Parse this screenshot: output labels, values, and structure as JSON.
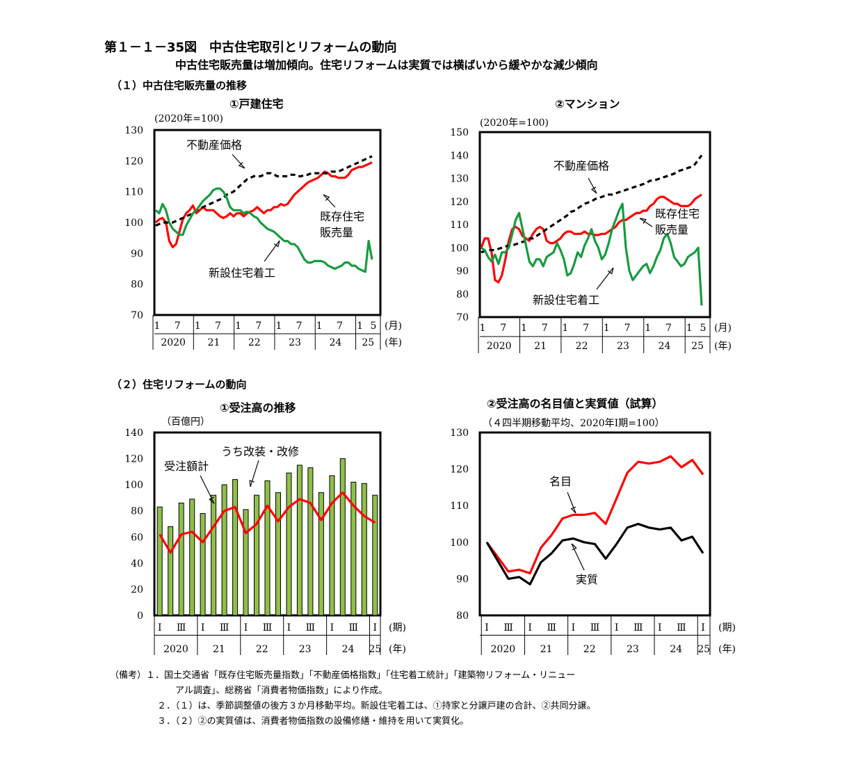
{
  "figure": {
    "title": "第１－１－35図　中古住宅取引とリフォームの動向",
    "subtitle": "中古住宅販売量は増加傾向。住宅リフォームは実質では横ばいから緩やかな減少傾向",
    "section1": "（１）中古住宅販売量の推移",
    "section2": "（２）住宅リフォームの動向"
  },
  "panels": [
    {
      "title": "①戸建住宅",
      "unit": "(2020年=100)"
    },
    {
      "title": "②マンション",
      "unit": "(2020年=100)"
    },
    {
      "title": "①受注高の推移",
      "unit": "（百億円）"
    },
    {
      "title": "②受注高の名目値と実質値（試算）",
      "unit": "（４四半期移動平均、2020年Ⅰ期=100）"
    }
  ],
  "notes": [
    "（備考）１．国土交通省「既存住宅販売量指数」「不動産価格指数」「住宅着工統計」「建築物リフォーム・リニュー",
    "アル調査」、総務省「消費者物価指数」により作成。",
    "２．（１）は、季節調整値の後方３か月移動平均。新設住宅着工は、①持家と分譲戸建の合計、②共同分譲。",
    "３．（２）②の実質値は、消費者物価指数の設備修繕・維持を用いて実質化。"
  ],
  "chart_data": [
    {
      "type": "line",
      "title": "①戸建住宅",
      "ylabel": "(2020年=100)",
      "ylim": [
        70,
        130
      ],
      "yticks": [
        70,
        80,
        90,
        100,
        110,
        120,
        130
      ],
      "x_unit_label": "(月)",
      "year_unit_label": "(年)",
      "month_ticks": [
        "1",
        "7",
        "1",
        "7",
        "1",
        "7",
        "1",
        "7",
        "1",
        "7",
        "1",
        "5"
      ],
      "years": [
        "2020",
        "21",
        "22",
        "23",
        "24",
        "25"
      ],
      "x_start": "2020-01",
      "x_end": "2025-05",
      "series": [
        {
          "name": "既存住宅販売量",
          "color": "#ff0000",
          "style": "solid",
          "values": [
            100,
            101,
            101.5,
            100,
            94,
            92,
            93,
            97,
            101,
            103,
            104,
            105.5,
            103,
            104,
            105,
            104,
            104,
            104,
            103,
            102,
            101.5,
            102,
            103,
            102,
            103,
            103,
            102,
            103,
            103.5,
            104,
            105,
            104,
            103,
            104,
            104,
            105,
            105,
            106,
            105.5,
            106,
            107.5,
            109,
            110,
            111,
            112,
            113,
            113.5,
            114,
            114.5,
            115.5,
            116.5,
            116,
            115,
            115,
            114.5,
            114.5,
            114.5,
            115.5,
            117,
            117.5,
            118,
            118,
            118.5,
            119,
            119.5
          ]
        },
        {
          "name": "不動産価格",
          "color": "#000000",
          "style": "dashed",
          "values": [
            99,
            99.5,
            100,
            100,
            100,
            100,
            100.5,
            101,
            101.5,
            102,
            102.5,
            103,
            104,
            104.5,
            105,
            105.5,
            106,
            106.5,
            107,
            107.5,
            108,
            109,
            109.5,
            110,
            111,
            112,
            113,
            114,
            114.5,
            115,
            115,
            115,
            115.5,
            116,
            116,
            115.5,
            115,
            115,
            115,
            115,
            115.5,
            115.5,
            115,
            115,
            115.5,
            115.5,
            116,
            116,
            116,
            116,
            116,
            116,
            116.5,
            116.5,
            116.5,
            117,
            117.5,
            118,
            118.5,
            119,
            119.5,
            120,
            120.5,
            121,
            121.5
          ]
        },
        {
          "name": "新設住宅着工",
          "color": "#169b3e",
          "style": "solid",
          "values": [
            104,
            103,
            106,
            104,
            100,
            98,
            97,
            96,
            96,
            99,
            101,
            103,
            104,
            105.5,
            107,
            108,
            109,
            110.5,
            111,
            111,
            110,
            108,
            105,
            104,
            104,
            104,
            103,
            103.5,
            103,
            102,
            101.5,
            100,
            99,
            98,
            97.5,
            97,
            96,
            95,
            94,
            94,
            93,
            93,
            92,
            90,
            88,
            87,
            87,
            87.5,
            87.5,
            87.5,
            87,
            86,
            85.5,
            85,
            85.5,
            86,
            87,
            87,
            86,
            86,
            85,
            84.5,
            84,
            94,
            88
          ]
        }
      ],
      "annotations": [
        "不動産価格",
        "既存住宅",
        "販売量",
        "新設住宅着工"
      ]
    },
    {
      "type": "line",
      "title": "②マンション",
      "ylabel": "(2020年=100)",
      "ylim": [
        70,
        150
      ],
      "yticks": [
        70,
        80,
        90,
        100,
        110,
        120,
        130,
        140,
        150
      ],
      "x_unit_label": "(月)",
      "year_unit_label": "(年)",
      "month_ticks": [
        "1",
        "7",
        "1",
        "7",
        "1",
        "7",
        "1",
        "7",
        "1",
        "7",
        "1",
        "5"
      ],
      "years": [
        "2020",
        "21",
        "22",
        "23",
        "24",
        "25"
      ],
      "x_start": "2020-01",
      "x_end": "2025-05",
      "series": [
        {
          "name": "既存住宅販売量",
          "color": "#ff0000",
          "style": "solid",
          "values": [
            100,
            104,
            104,
            98,
            86,
            85,
            88,
            95,
            103,
            108,
            109,
            108,
            105,
            104,
            103,
            106,
            108,
            109,
            108,
            103,
            102,
            102,
            103,
            104,
            106,
            107,
            107,
            106,
            106,
            106,
            107,
            106,
            106,
            105.5,
            105.5,
            106,
            106,
            107,
            108,
            109,
            111,
            112,
            112,
            113,
            114,
            115,
            115,
            116,
            116,
            118,
            119,
            121,
            122,
            122,
            121,
            120,
            119,
            119,
            118,
            118,
            118,
            119,
            121,
            122,
            123
          ]
        },
        {
          "name": "不動産価格",
          "color": "#000000",
          "style": "dashed",
          "values": [
            98,
            98.5,
            99,
            99,
            99,
            99.5,
            100,
            100.5,
            101,
            101,
            101.5,
            102,
            102.5,
            103,
            104,
            104,
            105,
            106,
            107,
            108,
            109,
            110,
            111,
            112,
            113,
            114,
            115.5,
            116,
            117,
            118,
            119,
            119.5,
            120,
            121,
            121.5,
            122,
            122.5,
            123,
            123,
            123.5,
            124,
            124.5,
            125,
            125.5,
            126,
            126.5,
            127,
            127.5,
            128,
            129,
            129,
            129.5,
            130,
            130.5,
            131,
            131.5,
            132,
            133,
            133.5,
            134,
            134.5,
            135,
            136,
            138,
            140
          ]
        },
        {
          "name": "新設住宅着工",
          "color": "#169b3e",
          "style": "solid",
          "values": [
            100,
            99,
            96,
            94,
            97,
            93,
            98,
            98,
            100,
            106,
            112,
            115,
            108,
            101,
            94,
            92,
            95,
            95,
            92,
            96,
            97,
            98,
            102,
            99,
            95,
            88,
            89,
            93,
            98,
            96,
            101,
            104,
            108,
            103,
            100,
            95,
            97,
            102,
            108,
            112,
            116,
            119,
            100,
            90,
            86,
            88,
            90,
            92,
            93,
            89,
            92,
            96,
            99,
            104,
            106,
            102,
            96,
            94,
            92,
            93,
            96,
            97,
            98,
            100,
            75
          ]
        }
      ],
      "annotations": [
        "不動産価格",
        "既存住宅",
        "販売量",
        "新設住宅着工"
      ]
    },
    {
      "type": "bar",
      "title": "①受注高の推移",
      "ylabel": "（百億円）",
      "ylim": [
        0,
        140
      ],
      "yticks": [
        0,
        20,
        40,
        60,
        80,
        100,
        120,
        140
      ],
      "x_unit_label": "(期)",
      "year_unit_label": "(年)",
      "quarter_ticks": [
        "Ⅰ",
        "Ⅲ",
        "Ⅰ",
        "Ⅲ",
        "Ⅰ",
        "Ⅲ",
        "Ⅰ",
        "Ⅲ",
        "Ⅰ",
        "Ⅲ",
        "Ⅰ"
      ],
      "years": [
        "2020",
        "21",
        "22",
        "23",
        "24",
        "25"
      ],
      "categories": [
        "2020Q1",
        "2020Q2",
        "2020Q3",
        "2020Q4",
        "2021Q1",
        "2021Q2",
        "2021Q3",
        "2021Q4",
        "2022Q1",
        "2022Q2",
        "2022Q3",
        "2022Q4",
        "2023Q1",
        "2023Q2",
        "2023Q3",
        "2023Q4",
        "2024Q1",
        "2024Q2",
        "2024Q3",
        "2024Q4",
        "2025Q1"
      ],
      "series": [
        {
          "name": "受注額計",
          "color": "#8fbf4a",
          "type": "bar",
          "values": [
            83,
            68,
            86,
            89,
            78,
            92,
            100,
            104,
            81,
            92,
            103,
            94,
            109,
            115,
            113,
            94,
            107,
            120,
            102,
            101,
            92
          ]
        },
        {
          "name": "うち改装・改修",
          "color": "#ff0000",
          "type": "line",
          "values": [
            62,
            48,
            62,
            64,
            56,
            68,
            80,
            83,
            63,
            70,
            84,
            72,
            83,
            89,
            86,
            73,
            86,
            94,
            84,
            76,
            71
          ]
        }
      ],
      "annotations": [
        "うち改装・改修",
        "受注額計"
      ]
    },
    {
      "type": "line",
      "title": "②受注高の名目値と実質値（試算）",
      "ylabel": "（４四半期移動平均、2020年Ⅰ期=100）",
      "ylim": [
        80,
        130
      ],
      "yticks": [
        80,
        90,
        100,
        110,
        120,
        130
      ],
      "x_unit_label": "(期)",
      "year_unit_label": "(年)",
      "quarter_ticks": [
        "Ⅰ",
        "Ⅲ",
        "Ⅰ",
        "Ⅲ",
        "Ⅰ",
        "Ⅲ",
        "Ⅰ",
        "Ⅲ",
        "Ⅰ",
        "Ⅲ",
        "Ⅰ"
      ],
      "years": [
        "2020",
        "21",
        "22",
        "23",
        "24",
        "25"
      ],
      "categories": [
        "2020Q1",
        "2020Q2",
        "2020Q3",
        "2020Q4",
        "2021Q1",
        "2021Q2",
        "2021Q3",
        "2021Q4",
        "2022Q1",
        "2022Q2",
        "2022Q3",
        "2022Q4",
        "2023Q1",
        "2023Q2",
        "2023Q3",
        "2023Q4",
        "2024Q1",
        "2024Q2",
        "2024Q3",
        "2024Q4",
        "2025Q1"
      ],
      "series": [
        {
          "name": "名目",
          "color": "#ff0000",
          "values": [
            100,
            96,
            92,
            92.5,
            91.5,
            98.5,
            102,
            106.5,
            107.5,
            107.5,
            108,
            105,
            112,
            119,
            122,
            121.5,
            122,
            123.5,
            120.5,
            122.5,
            118.5
          ]
        },
        {
          "name": "実質",
          "color": "#000000",
          "values": [
            100,
            95,
            90,
            90.5,
            88.5,
            94.5,
            97,
            100.5,
            101,
            100,
            99.5,
            95.5,
            99.5,
            104,
            105,
            104,
            103.5,
            104,
            100.5,
            101.5,
            97
          ]
        }
      ],
      "annotations": [
        "名目",
        "実質"
      ]
    }
  ]
}
